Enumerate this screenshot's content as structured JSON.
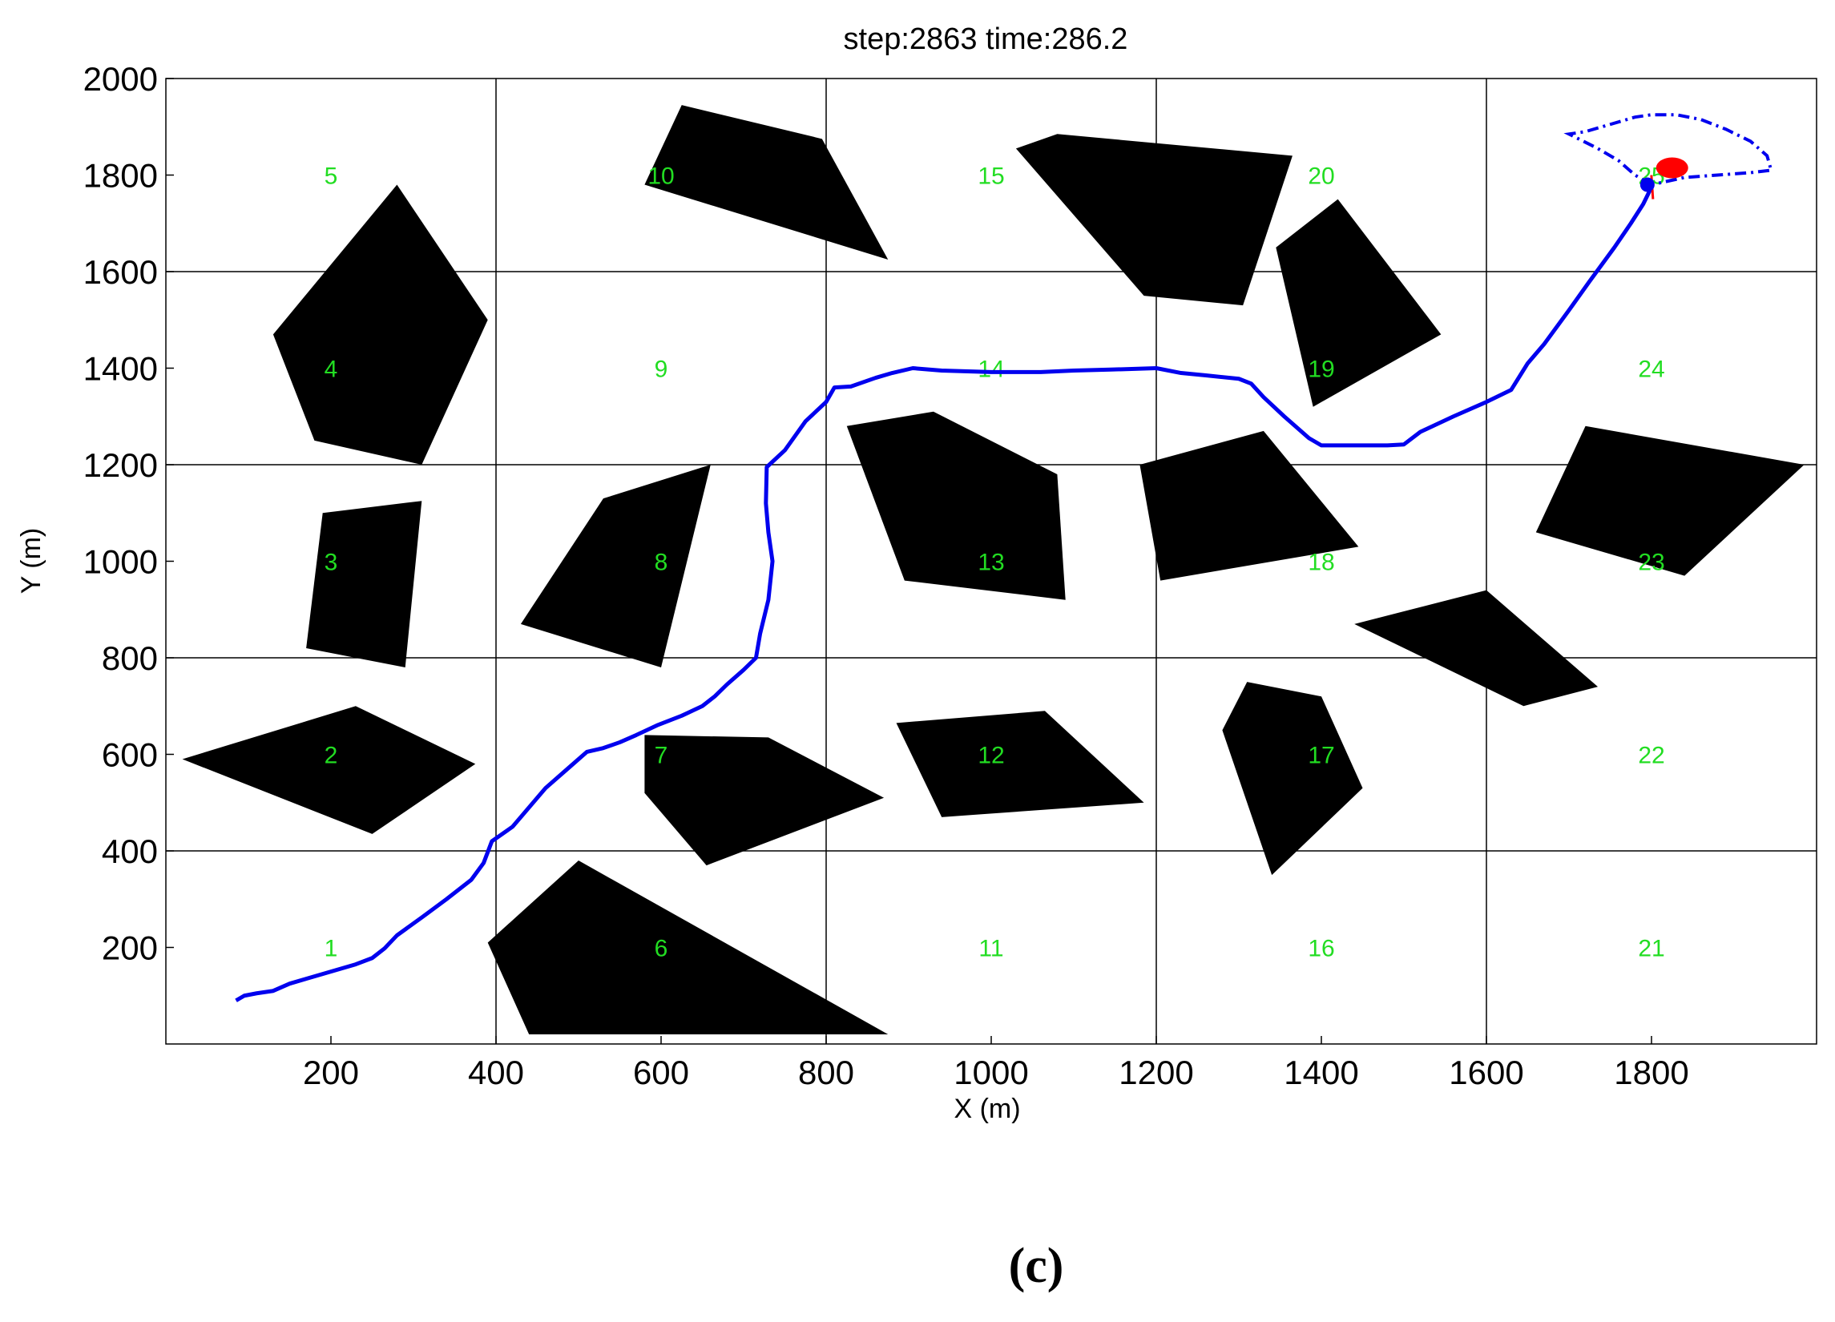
{
  "chart_data": {
    "type": "scatter",
    "title": "step:2863 time:286.2",
    "xlabel": "X (m)",
    "ylabel": "Y (m)",
    "xlim": [
      0,
      2000
    ],
    "ylim": [
      0,
      2000
    ],
    "xticks": [
      200,
      400,
      600,
      800,
      1000,
      1200,
      1400,
      1600,
      1800
    ],
    "yticks": [
      200,
      400,
      600,
      800,
      1000,
      1200,
      1400,
      1600,
      1800,
      2000
    ],
    "grid": {
      "x": [
        400,
        800,
        1200,
        1600
      ],
      "y": [
        400,
        800,
        1200,
        1600
      ]
    },
    "cell_labels": [
      {
        "text": "1",
        "x": 200,
        "y": 200
      },
      {
        "text": "2",
        "x": 200,
        "y": 600
      },
      {
        "text": "3",
        "x": 200,
        "y": 1000
      },
      {
        "text": "4",
        "x": 200,
        "y": 1400
      },
      {
        "text": "5",
        "x": 200,
        "y": 1800
      },
      {
        "text": "6",
        "x": 600,
        "y": 200
      },
      {
        "text": "7",
        "x": 600,
        "y": 600
      },
      {
        "text": "8",
        "x": 600,
        "y": 1000
      },
      {
        "text": "9",
        "x": 600,
        "y": 1400
      },
      {
        "text": "10",
        "x": 600,
        "y": 1800
      },
      {
        "text": "11",
        "x": 1000,
        "y": 200
      },
      {
        "text": "12",
        "x": 1000,
        "y": 600
      },
      {
        "text": "13",
        "x": 1000,
        "y": 1000
      },
      {
        "text": "14",
        "x": 1000,
        "y": 1400
      },
      {
        "text": "15",
        "x": 1000,
        "y": 1800
      },
      {
        "text": "16",
        "x": 1400,
        "y": 200
      },
      {
        "text": "17",
        "x": 1400,
        "y": 600
      },
      {
        "text": "18",
        "x": 1400,
        "y": 1000
      },
      {
        "text": "19",
        "x": 1400,
        "y": 1400
      },
      {
        "text": "20",
        "x": 1400,
        "y": 1800
      },
      {
        "text": "21",
        "x": 1800,
        "y": 200
      },
      {
        "text": "22",
        "x": 1800,
        "y": 600
      },
      {
        "text": "23",
        "x": 1800,
        "y": 1000
      },
      {
        "text": "24",
        "x": 1800,
        "y": 1400
      },
      {
        "text": "25",
        "x": 1800,
        "y": 1800
      }
    ],
    "obstacles": [
      [
        [
          20,
          590
        ],
        [
          230,
          700
        ],
        [
          375,
          580
        ],
        [
          250,
          435
        ]
      ],
      [
        [
          130,
          1470
        ],
        [
          280,
          1780
        ],
        [
          390,
          1500
        ],
        [
          310,
          1200
        ],
        [
          180,
          1250
        ]
      ],
      [
        [
          190,
          1100
        ],
        [
          310,
          1125
        ],
        [
          290,
          780
        ],
        [
          170,
          820
        ]
      ],
      [
        [
          580,
          1780
        ],
        [
          625,
          1945
        ],
        [
          795,
          1875
        ],
        [
          875,
          1625
        ]
      ],
      [
        [
          430,
          870
        ],
        [
          530,
          1130
        ],
        [
          660,
          1200
        ],
        [
          600,
          780
        ]
      ],
      [
        [
          580,
          640
        ],
        [
          730,
          635
        ],
        [
          870,
          510
        ],
        [
          655,
          370
        ],
        [
          580,
          520
        ]
      ],
      [
        [
          390,
          210
        ],
        [
          500,
          380
        ],
        [
          875,
          20
        ],
        [
          440,
          20
        ]
      ],
      [
        [
          825,
          1280
        ],
        [
          930,
          1310
        ],
        [
          1080,
          1180
        ],
        [
          1090,
          920
        ],
        [
          895,
          960
        ]
      ],
      [
        [
          885,
          665
        ],
        [
          1065,
          690
        ],
        [
          1185,
          500
        ],
        [
          940,
          470
        ]
      ],
      [
        [
          1030,
          1855
        ],
        [
          1080,
          1885
        ],
        [
          1365,
          1840
        ],
        [
          1305,
          1530
        ],
        [
          1185,
          1550
        ]
      ],
      [
        [
          1180,
          1200
        ],
        [
          1330,
          1270
        ],
        [
          1445,
          1030
        ],
        [
          1205,
          960
        ]
      ],
      [
        [
          1345,
          1650
        ],
        [
          1420,
          1750
        ],
        [
          1545,
          1470
        ],
        [
          1390,
          1320
        ]
      ],
      [
        [
          1280,
          650
        ],
        [
          1310,
          750
        ],
        [
          1400,
          720
        ],
        [
          1450,
          530
        ],
        [
          1340,
          350
        ]
      ],
      [
        [
          1440,
          870
        ],
        [
          1600,
          940
        ],
        [
          1735,
          740
        ],
        [
          1645,
          700
        ]
      ],
      [
        [
          1660,
          1060
        ],
        [
          1720,
          1280
        ],
        [
          1985,
          1200
        ],
        [
          1840,
          970
        ]
      ]
    ],
    "path": [
      [
        85,
        90
      ],
      [
        95,
        100
      ],
      [
        110,
        105
      ],
      [
        130,
        110
      ],
      [
        150,
        125
      ],
      [
        170,
        135
      ],
      [
        200,
        150
      ],
      [
        230,
        165
      ],
      [
        250,
        178
      ],
      [
        265,
        198
      ],
      [
        280,
        225
      ],
      [
        310,
        262
      ],
      [
        340,
        300
      ],
      [
        370,
        340
      ],
      [
        385,
        375
      ],
      [
        395,
        420
      ],
      [
        420,
        450
      ],
      [
        440,
        490
      ],
      [
        460,
        530
      ],
      [
        490,
        575
      ],
      [
        510,
        605
      ],
      [
        530,
        613
      ],
      [
        550,
        625
      ],
      [
        570,
        640
      ],
      [
        595,
        660
      ],
      [
        625,
        680
      ],
      [
        650,
        700
      ],
      [
        665,
        720
      ],
      [
        680,
        745
      ],
      [
        700,
        775
      ],
      [
        715,
        800
      ],
      [
        720,
        850
      ],
      [
        730,
        920
      ],
      [
        735,
        1000
      ],
      [
        730,
        1060
      ],
      [
        727,
        1120
      ],
      [
        728,
        1195
      ],
      [
        750,
        1230
      ],
      [
        775,
        1290
      ],
      [
        800,
        1330
      ],
      [
        810,
        1360
      ],
      [
        830,
        1362
      ],
      [
        860,
        1380
      ],
      [
        880,
        1390
      ],
      [
        905,
        1400
      ],
      [
        940,
        1395
      ],
      [
        1000,
        1392
      ],
      [
        1060,
        1392
      ],
      [
        1100,
        1395
      ],
      [
        1145,
        1397
      ],
      [
        1200,
        1400
      ],
      [
        1230,
        1390
      ],
      [
        1260,
        1385
      ],
      [
        1300,
        1378
      ],
      [
        1315,
        1368
      ],
      [
        1330,
        1340
      ],
      [
        1355,
        1300
      ],
      [
        1385,
        1255
      ],
      [
        1400,
        1240
      ],
      [
        1440,
        1240
      ],
      [
        1480,
        1240
      ],
      [
        1500,
        1242
      ],
      [
        1520,
        1268
      ],
      [
        1560,
        1300
      ],
      [
        1600,
        1330
      ],
      [
        1630,
        1355
      ],
      [
        1650,
        1410
      ],
      [
        1670,
        1450
      ],
      [
        1700,
        1520
      ],
      [
        1725,
        1580
      ],
      [
        1755,
        1650
      ],
      [
        1775,
        1700
      ],
      [
        1790,
        1740
      ],
      [
        1800,
        1775
      ]
    ],
    "sensor_boundary": [
      [
        1800,
        1780
      ],
      [
        1780,
        1800
      ],
      [
        1760,
        1830
      ],
      [
        1735,
        1855
      ],
      [
        1700,
        1885
      ],
      [
        1720,
        1890
      ],
      [
        1750,
        1905
      ],
      [
        1780,
        1920
      ],
      [
        1800,
        1925
      ],
      [
        1830,
        1925
      ],
      [
        1860,
        1915
      ],
      [
        1890,
        1895
      ],
      [
        1920,
        1870
      ],
      [
        1940,
        1840
      ],
      [
        1945,
        1810
      ],
      [
        1920,
        1805
      ],
      [
        1880,
        1800
      ],
      [
        1840,
        1795
      ],
      [
        1800,
        1780
      ]
    ],
    "robot": {
      "x": 1795,
      "y": 1780
    },
    "target": {
      "x": 1825,
      "y": 1815
    },
    "colors": {
      "path": "#0000ee",
      "target": "#ff0000",
      "grid": "#000000",
      "obstacle": "#000000",
      "labels": "#22dd22"
    },
    "caption": "(c)"
  }
}
